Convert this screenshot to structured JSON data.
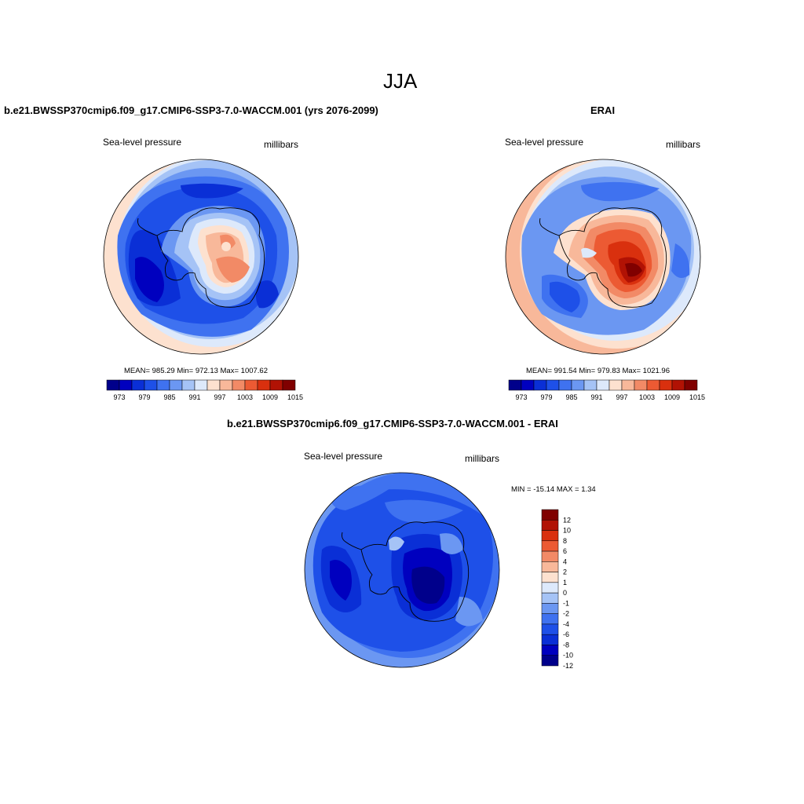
{
  "page": {
    "season": "JJA",
    "bg_color": "#ffffff"
  },
  "palette": {
    "blue_red": [
      "#00008b",
      "#0000bf",
      "#0a2fd6",
      "#1e50e8",
      "#3f72f0",
      "#6b97f2",
      "#a5c3f6",
      "#dde9fb",
      "#fde1cf",
      "#f8b89a",
      "#f28a66",
      "#ec5a33",
      "#d9300e",
      "#b11204",
      "#800000"
    ],
    "diff": [
      "#00008b",
      "#0000bf",
      "#0a2fd6",
      "#1e50e8",
      "#3f72f0",
      "#6b97f2",
      "#a5c3f6",
      "#dde9fb",
      "#fde1cf",
      "#f8b89a",
      "#f28a66",
      "#ec5a33",
      "#d9300e",
      "#b11204",
      "#800000"
    ]
  },
  "panel_left": {
    "header": "b.e21.BWSSP370cmip6.f09_g17.CMIP6-SSP3-7.0-WACCM.001 (yrs 2076-2099)",
    "variable": "Sea-level pressure",
    "units": "millibars",
    "stats": "MEAN= 985.29  Min= 972.13  Max= 1007.62",
    "colorbar_ticks": [
      "973",
      "979",
      "985",
      "991",
      "997",
      "1003",
      "1009",
      "1015"
    ]
  },
  "panel_right": {
    "header": "ERAI",
    "variable": "Sea-level pressure",
    "units": "millibars",
    "stats": "MEAN= 991.54  Min= 979.83  Max= 1021.96",
    "colorbar_ticks": [
      "973",
      "979",
      "985",
      "991",
      "997",
      "1003",
      "1009",
      "1015"
    ]
  },
  "panel_diff": {
    "header": "b.e21.BWSSP370cmip6.f09_g17.CMIP6-SSP3-7.0-WACCM.001 - ERAI",
    "variable": "Sea-level pressure",
    "units": "millibars",
    "stats": "MIN = -15.14 MAX =   1.34",
    "colorbar_ticks": [
      "12",
      "10",
      "8",
      "6",
      "4",
      "2",
      "1",
      "0",
      "-1",
      "-2",
      "-4",
      "-6",
      "-8",
      "-10",
      "-12"
    ]
  }
}
